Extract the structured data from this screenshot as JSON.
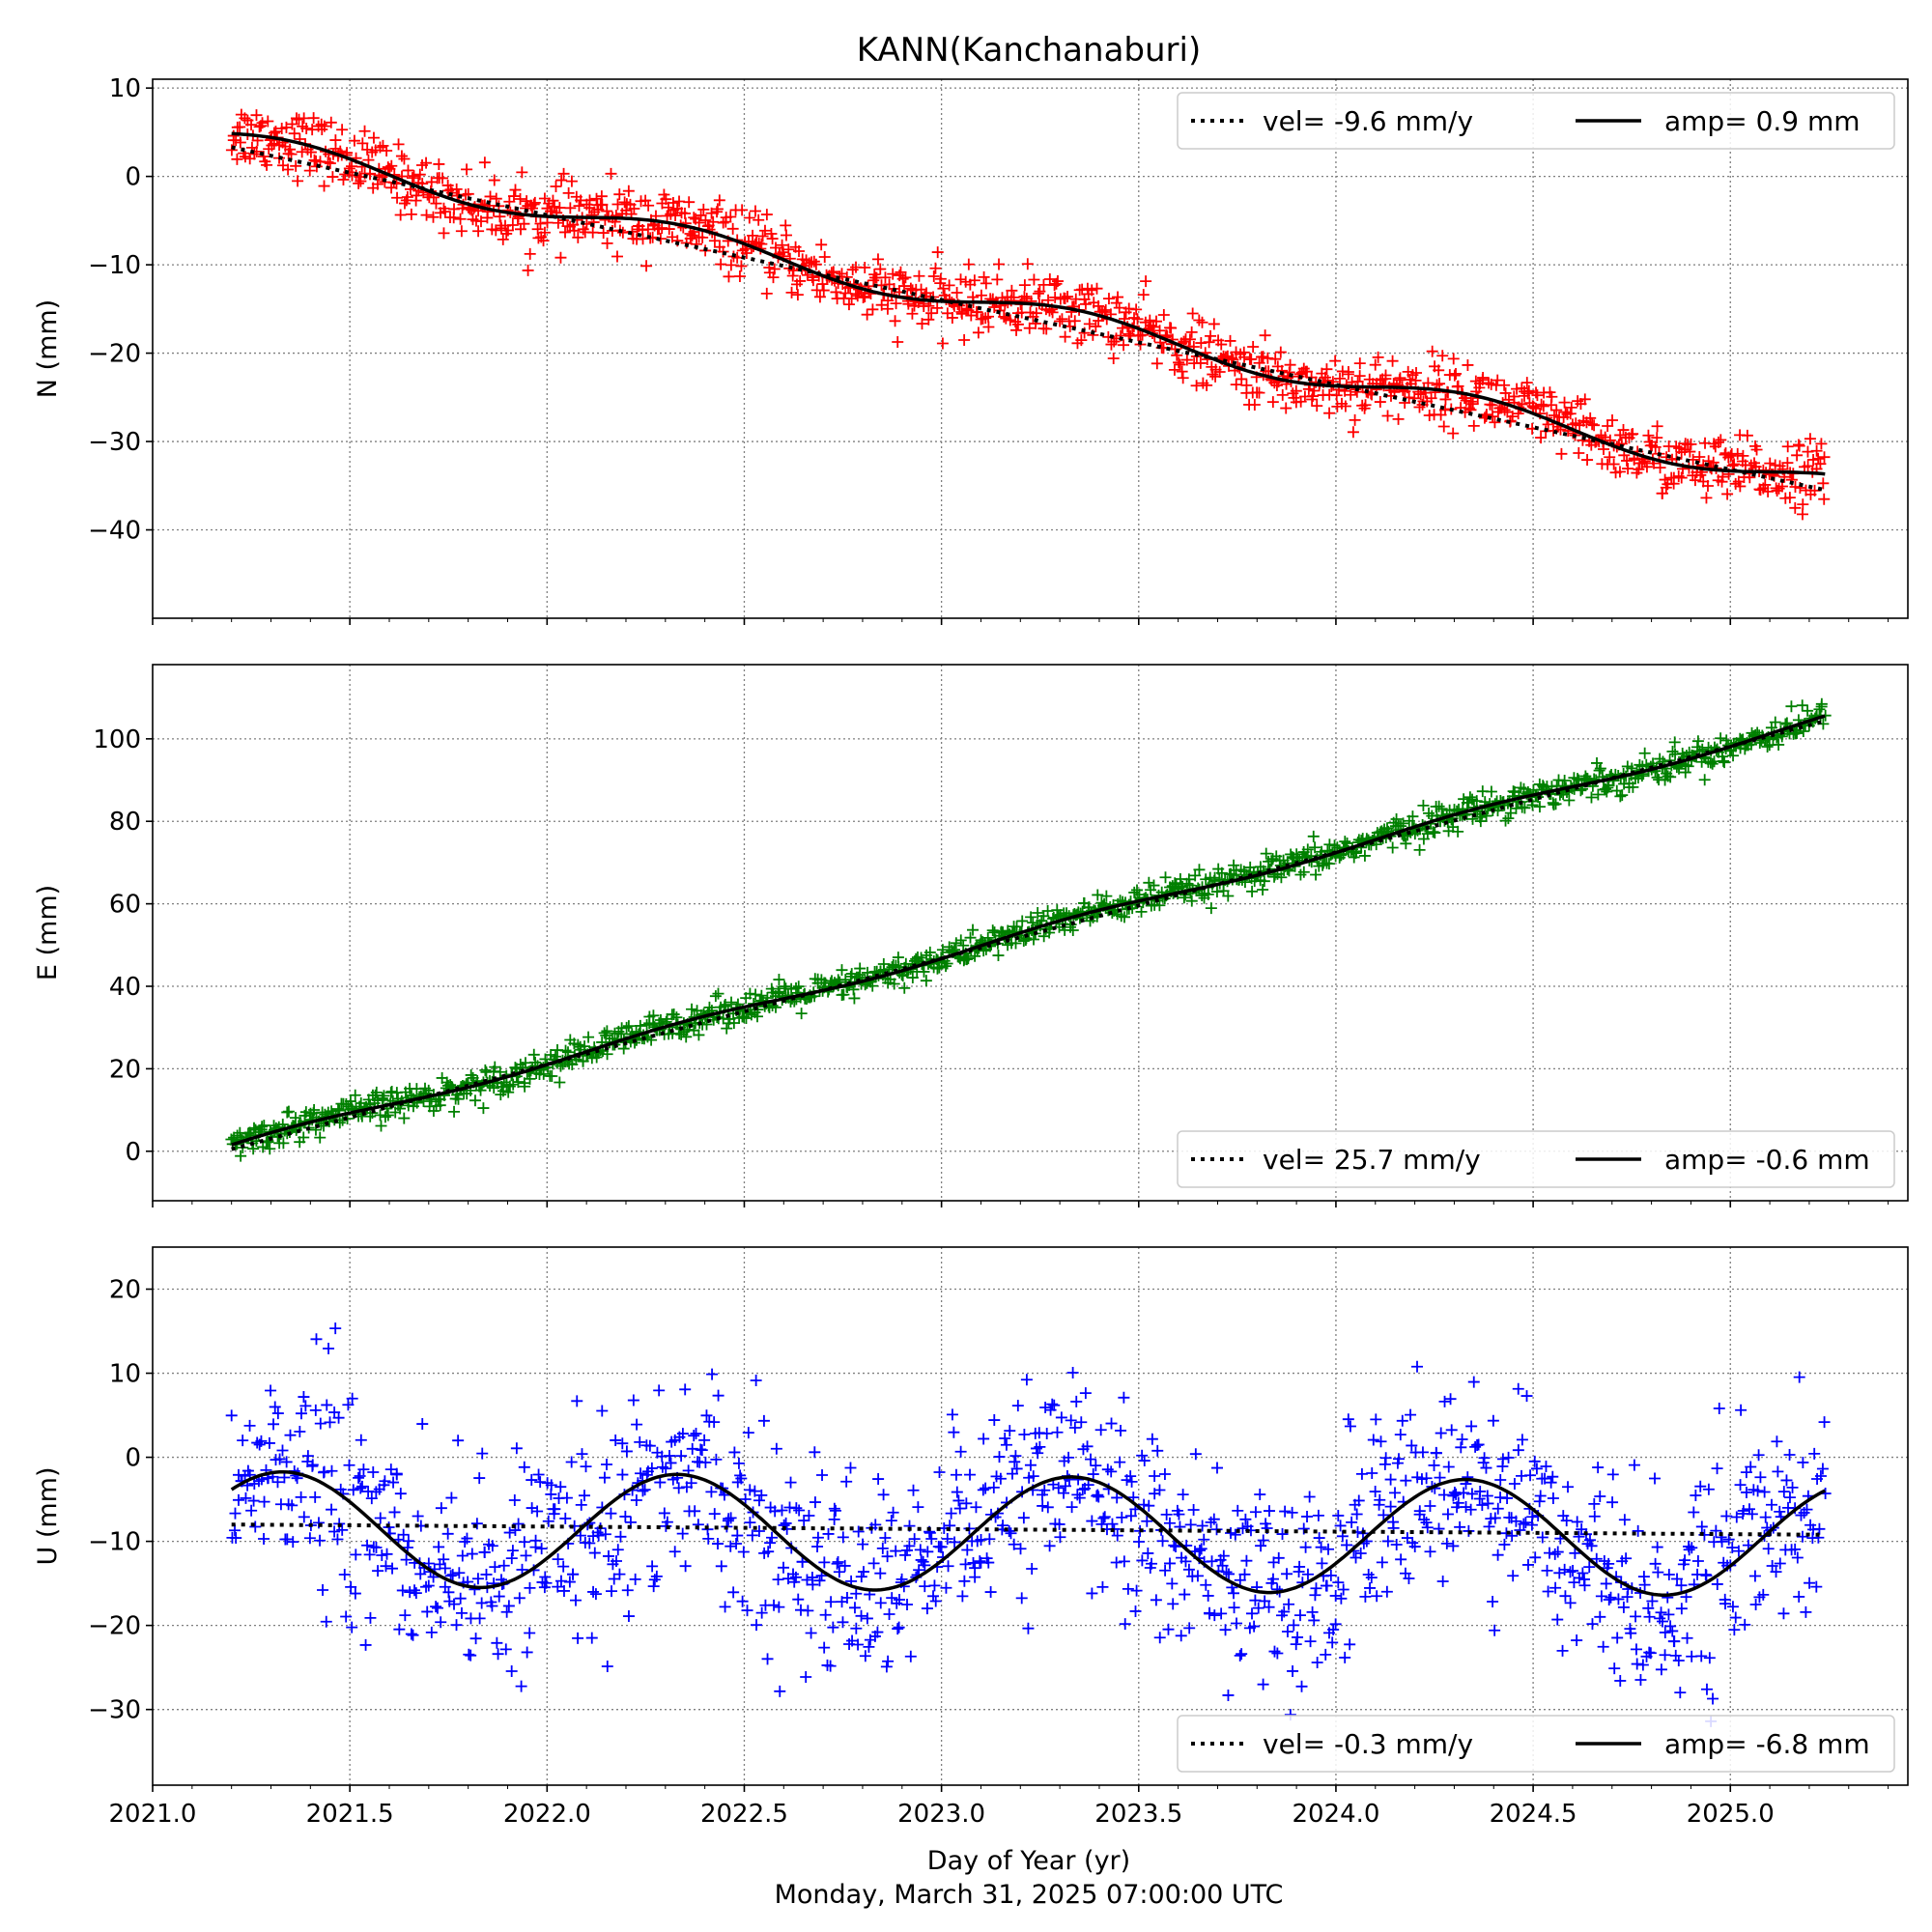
{
  "chart_data": {
    "type": "scatter",
    "title": "KANN(Kanchanaburi)",
    "xlabel": "Day of Year (yr)",
    "footer": "Monday, March 31, 2025 07:00:00 UTC",
    "xlim": [
      2021.0,
      2025.45
    ],
    "xticks": [
      "2021.0",
      "2021.5",
      "2022.0",
      "2022.5",
      "2023.0",
      "2023.5",
      "2024.0",
      "2024.5",
      "2025.0"
    ],
    "x_start": 2021.2,
    "x_end": 2025.24,
    "grid": true,
    "legend_placement": "upper-right",
    "panels": [
      {
        "id": "N",
        "ylabel": "N (mm)",
        "ylim": [
          -50,
          11
        ],
        "yticks": [
          10,
          0,
          -10,
          -20,
          -30,
          -40
        ],
        "ytick_labels": [
          "10",
          "0",
          "−10",
          "−20",
          "−30",
          "−40"
        ],
        "color": "#ff0000",
        "velocity_mm_per_yr": -9.6,
        "vel_at_start": 3.3,
        "annual_amplitude_mm": 0.9,
        "amp_phase_peak_year": 2021.35,
        "offset_at_start": 4.0,
        "noise_mm": 2.0,
        "legend": {
          "vel": "vel= -9.6 mm/y",
          "amp": "amp= 0.9 mm"
        }
      },
      {
        "id": "E",
        "ylabel": "E (mm)",
        "ylim": [
          -12,
          118
        ],
        "yticks": [
          100,
          80,
          60,
          40,
          20,
          0
        ],
        "ytick_labels": [
          "100",
          "80",
          "60",
          "40",
          "20",
          "0"
        ],
        "color": "#008000",
        "velocity_mm_per_yr": 25.7,
        "vel_at_start": 0.5,
        "annual_amplitude_mm": -0.6,
        "amp_phase_peak_year": 2021.35,
        "offset_at_start": 1.0,
        "noise_mm": 2.0,
        "legend": {
          "vel": "vel= 25.7 mm/y",
          "amp": "amp= -0.6 mm"
        }
      },
      {
        "id": "U",
        "ylabel": "U (mm)",
        "ylim": [
          -39,
          25
        ],
        "yticks": [
          20,
          10,
          0,
          -10,
          -20,
          -30
        ],
        "ytick_labels": [
          "20",
          "10",
          "0",
          "−10",
          "−20",
          "−30"
        ],
        "color": "#0000ff",
        "velocity_mm_per_yr": -0.3,
        "vel_at_start": -8.0,
        "annual_amplitude_mm": -6.8,
        "amp_phase_peak_year": 2021.33,
        "offset_at_start": -8.5,
        "noise_mm": 6.0,
        "legend": {
          "vel": "vel= -0.3 mm/y",
          "amp": "amp= -6.8 mm"
        }
      }
    ]
  }
}
